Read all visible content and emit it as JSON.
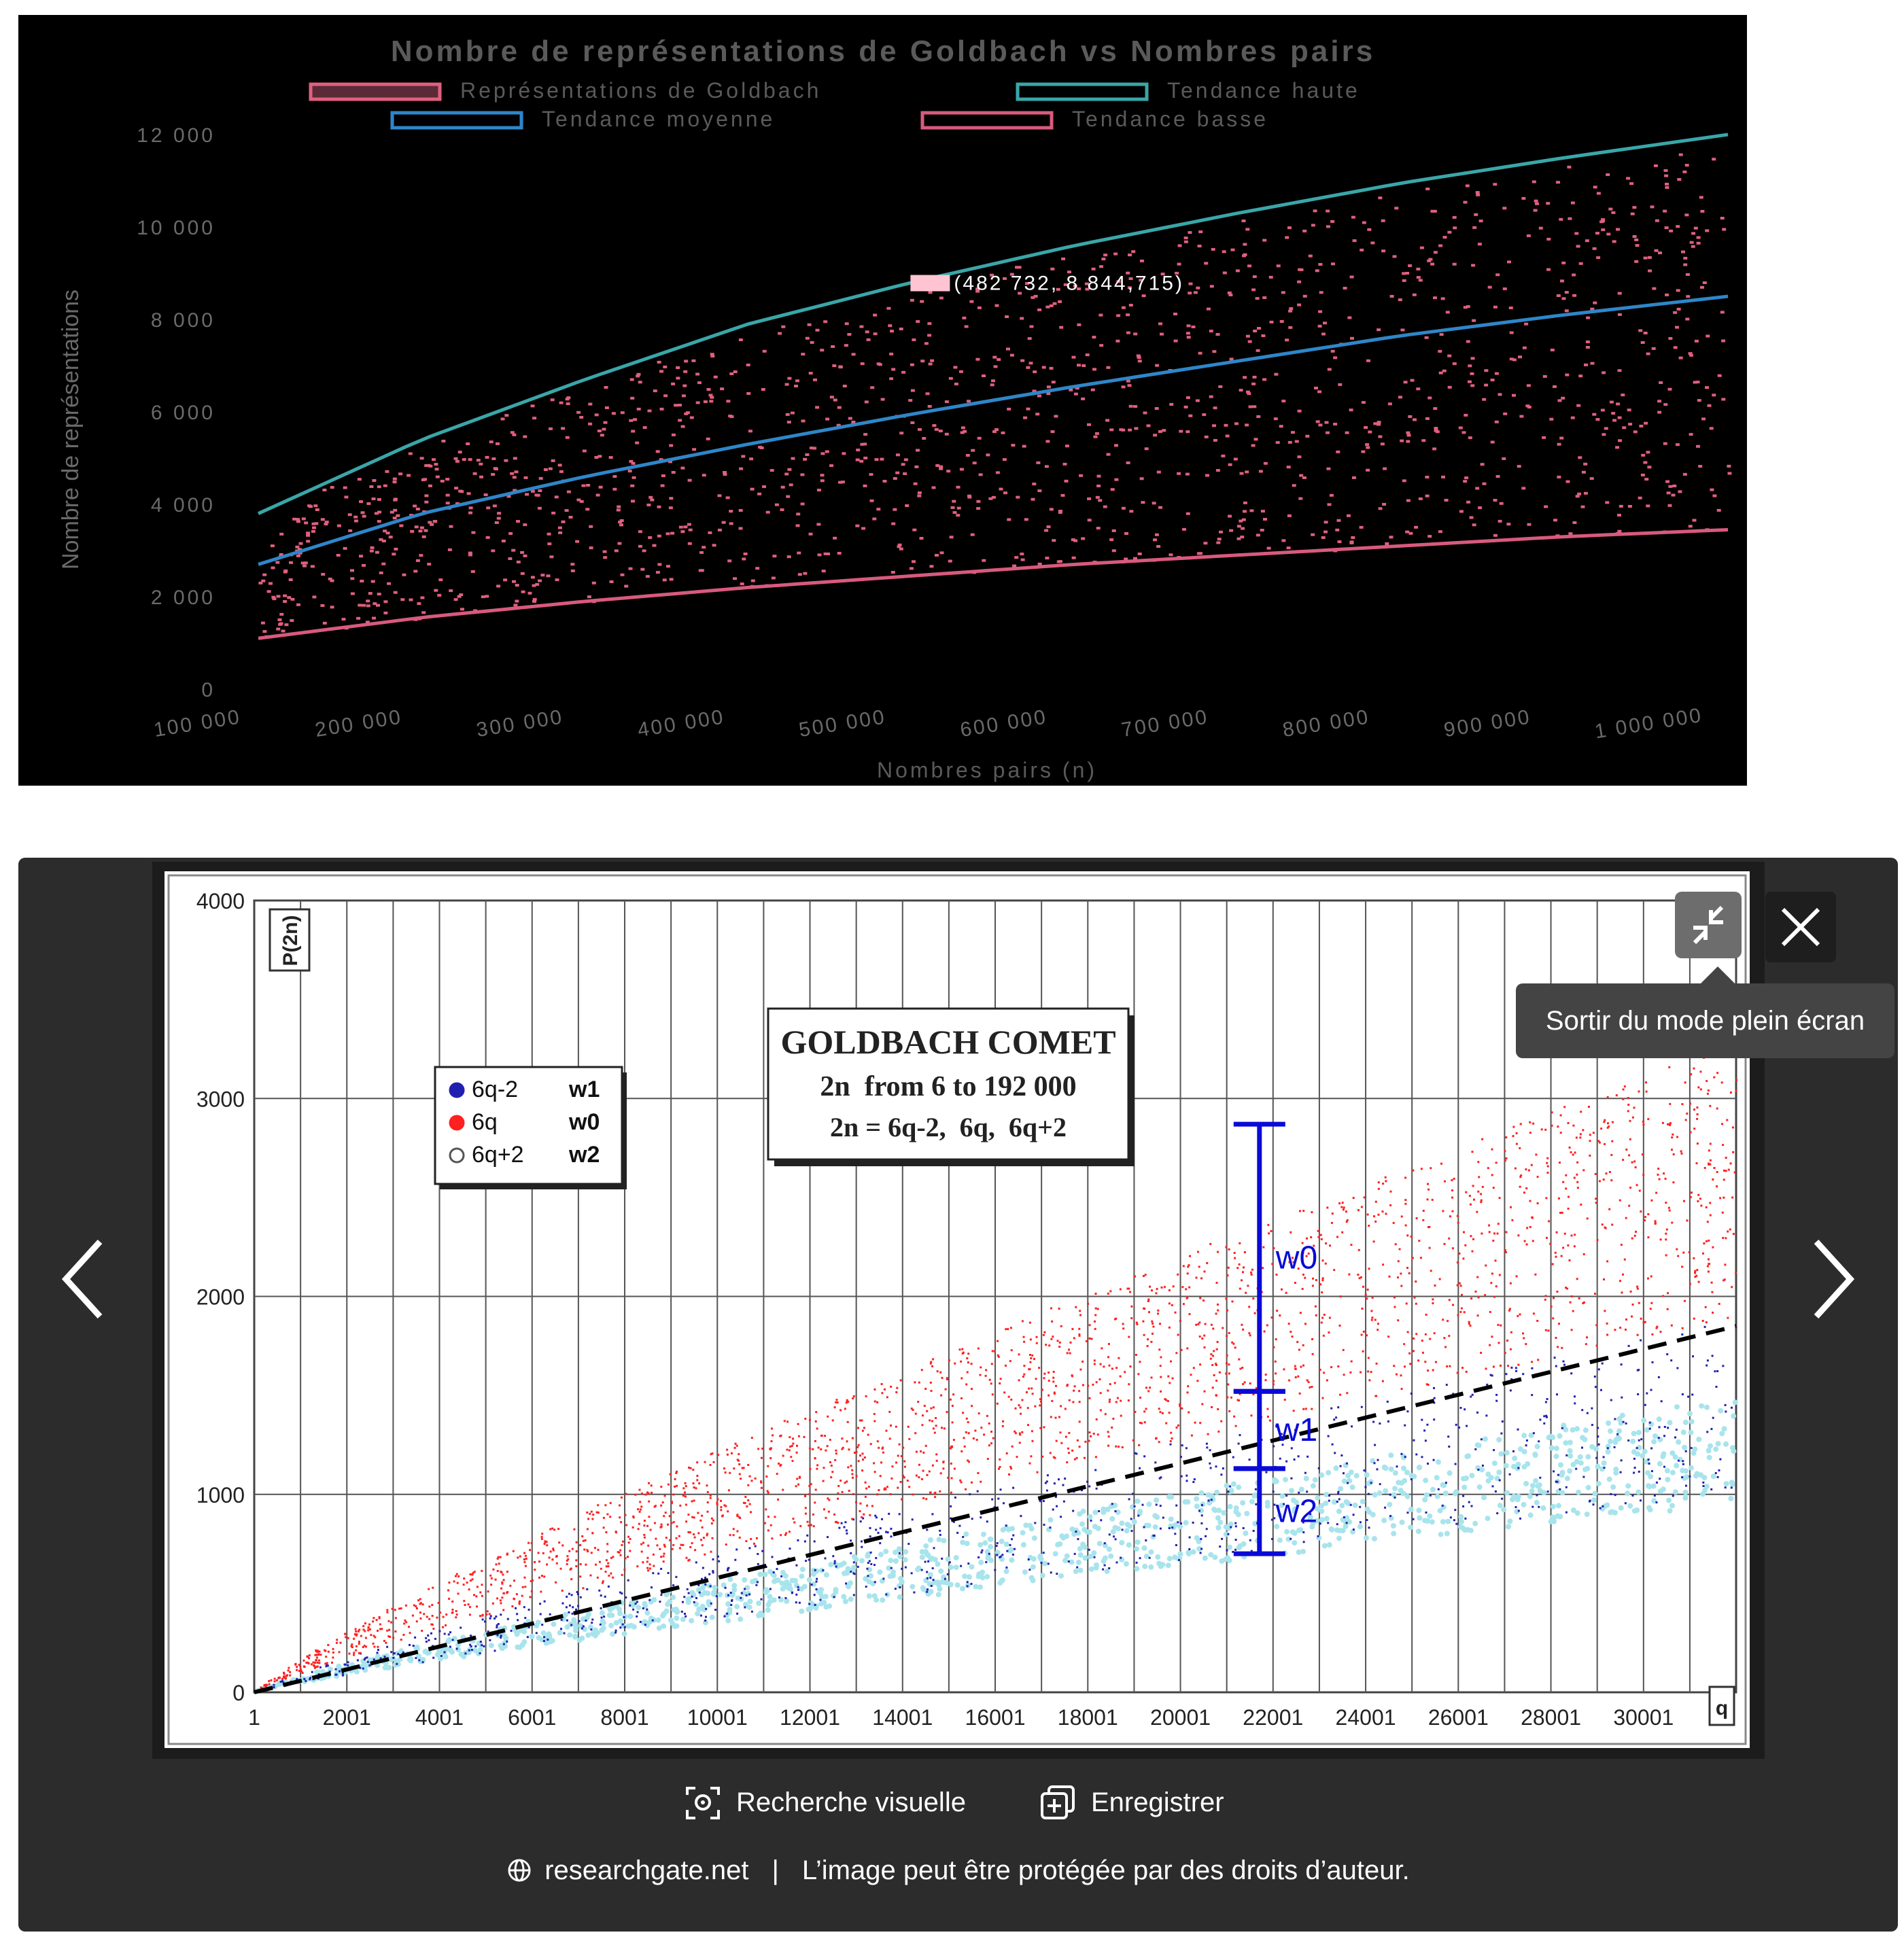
{
  "chart_data": [
    {
      "type": "scatter",
      "title": "Nombre de représentations de Goldbach vs Nombres pairs",
      "xlabel": "Nombres pairs (n)",
      "ylabel": "Nombre de représentations",
      "xlim": [
        100000,
        1000000
      ],
      "ylim": [
        0,
        12000
      ],
      "x_ticks": [
        "100 000",
        "200 000",
        "300 000",
        "400 000",
        "500 000",
        "600 000",
        "700 000",
        "800 000",
        "900 000",
        "1 000 000"
      ],
      "y_ticks": [
        "0",
        "2 000",
        "4 000",
        "6 000",
        "8 000",
        "10 000",
        "12 000"
      ],
      "legend": "top",
      "series": [
        {
          "name": "Représentations de Goldbach",
          "type": "scatter",
          "color": "#e0607e",
          "x_range": [
            100000,
            1000000
          ],
          "y_range": [
            1000,
            12000
          ]
        },
        {
          "name": "Tendance haute",
          "type": "line",
          "color": "#3aa6a8",
          "x": [
            100000,
            200000,
            300000,
            400000,
            500000,
            600000,
            700000,
            800000,
            900000,
            1000000
          ],
          "y": [
            3800,
            5400,
            6700,
            7900,
            8800,
            9600,
            10300,
            10950,
            11500,
            12000
          ]
        },
        {
          "name": "Tendance moyenne",
          "type": "line",
          "color": "#2e86c8",
          "x": [
            100000,
            200000,
            300000,
            400000,
            500000,
            600000,
            700000,
            800000,
            900000,
            1000000
          ],
          "y": [
            2700,
            3800,
            4600,
            5300,
            5950,
            6550,
            7100,
            7650,
            8100,
            8500
          ]
        },
        {
          "name": "Tendance basse",
          "type": "line",
          "color": "#d85a7e",
          "x": [
            100000,
            200000,
            300000,
            400000,
            500000,
            600000,
            700000,
            800000,
            900000,
            1000000
          ],
          "y": [
            1100,
            1550,
            1900,
            2200,
            2450,
            2700,
            2900,
            3100,
            3300,
            3450
          ]
        }
      ],
      "annotation": {
        "label": "(482 732, 8 844,715)",
        "x": 482732,
        "y": 8844.715,
        "color": "#ffc4d2"
      }
    },
    {
      "type": "scatter",
      "title": "GOLDBACH COMET",
      "subtitle_lines": [
        "2n  from 6 to 192 000",
        "2n = 6q-2,  6q,  6q+2"
      ],
      "ylabel": "P(2n)",
      "xlabel": "q",
      "xlim": [
        1,
        32000
      ],
      "ylim": [
        0,
        4000
      ],
      "x_ticks": [
        "1",
        "2001",
        "4001",
        "6001",
        "8001",
        "10001",
        "12001",
        "14001",
        "16001",
        "18001",
        "20001",
        "22001",
        "24001",
        "26001",
        "28001",
        "30001"
      ],
      "y_ticks": [
        "0",
        "1000",
        "2000",
        "3000",
        "4000"
      ],
      "legend": "upper-left",
      "series": [
        {
          "name": "6q-2",
          "label": "w1",
          "color": "#2020b0",
          "x_range": [
            1,
            32000
          ],
          "y_range_at_end": [
            1000,
            1900
          ]
        },
        {
          "name": "6q",
          "label": "w0",
          "color": "#ff2020",
          "x_range": [
            1,
            32000
          ],
          "y_range_at_end": [
            1900,
            3300
          ]
        },
        {
          "name": "6q+2",
          "label": "w2",
          "color": "#a8e4ec",
          "x_range": [
            1,
            32000
          ],
          "y_range_at_end": [
            950,
            1500
          ]
        }
      ],
      "divider": {
        "style": "dashed",
        "x": [
          1,
          32000
        ],
        "y": [
          0,
          1850
        ]
      },
      "bands": [
        {
          "label": "w0",
          "x": 22001,
          "y_from": 1520,
          "y_to": 2870
        },
        {
          "label": "w1",
          "x": 22001,
          "y_from": 1130,
          "y_to": 1520
        },
        {
          "label": "w2",
          "x": 22001,
          "y_from": 700,
          "y_to": 1130
        }
      ]
    }
  ],
  "viewer": {
    "tooltip": "Sortir du mode plein écran",
    "actions": {
      "visual_search": "Recherche visuelle",
      "save": "Enregistrer"
    },
    "source": "researchgate.net",
    "separator": "|",
    "copyright": "L’image peut être protégée par des droits d’auteur."
  }
}
